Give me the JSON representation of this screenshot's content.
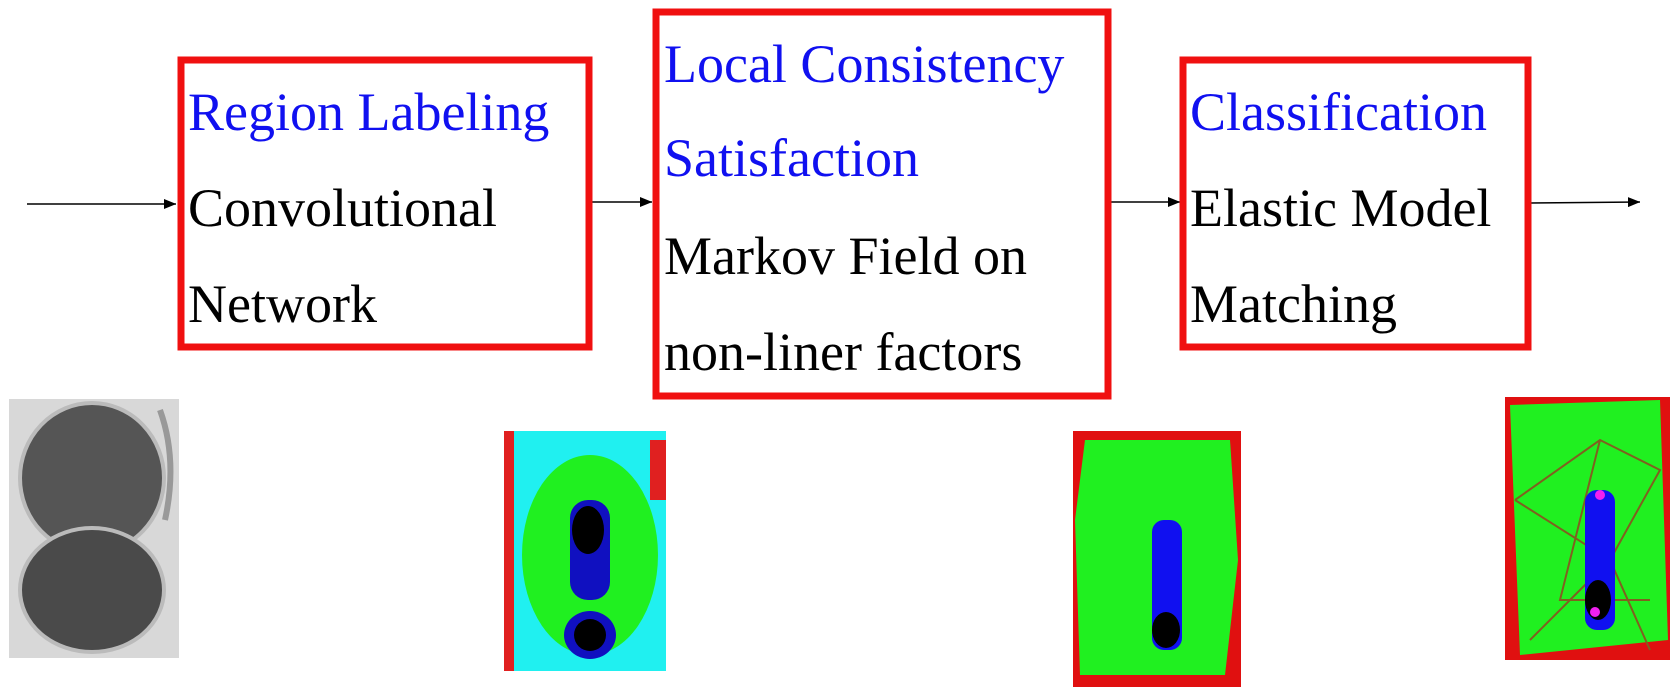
{
  "stages": [
    {
      "title": [
        "Region Labeling"
      ],
      "method": [
        "Convolutional",
        "Network"
      ]
    },
    {
      "title": [
        "Local Consistency",
        "Satisfaction"
      ],
      "method": [
        "Markov Field on",
        "non-liner factors"
      ]
    },
    {
      "title": [
        "Classification"
      ],
      "method": [
        "Elastic Model",
        "Matching"
      ]
    }
  ]
}
